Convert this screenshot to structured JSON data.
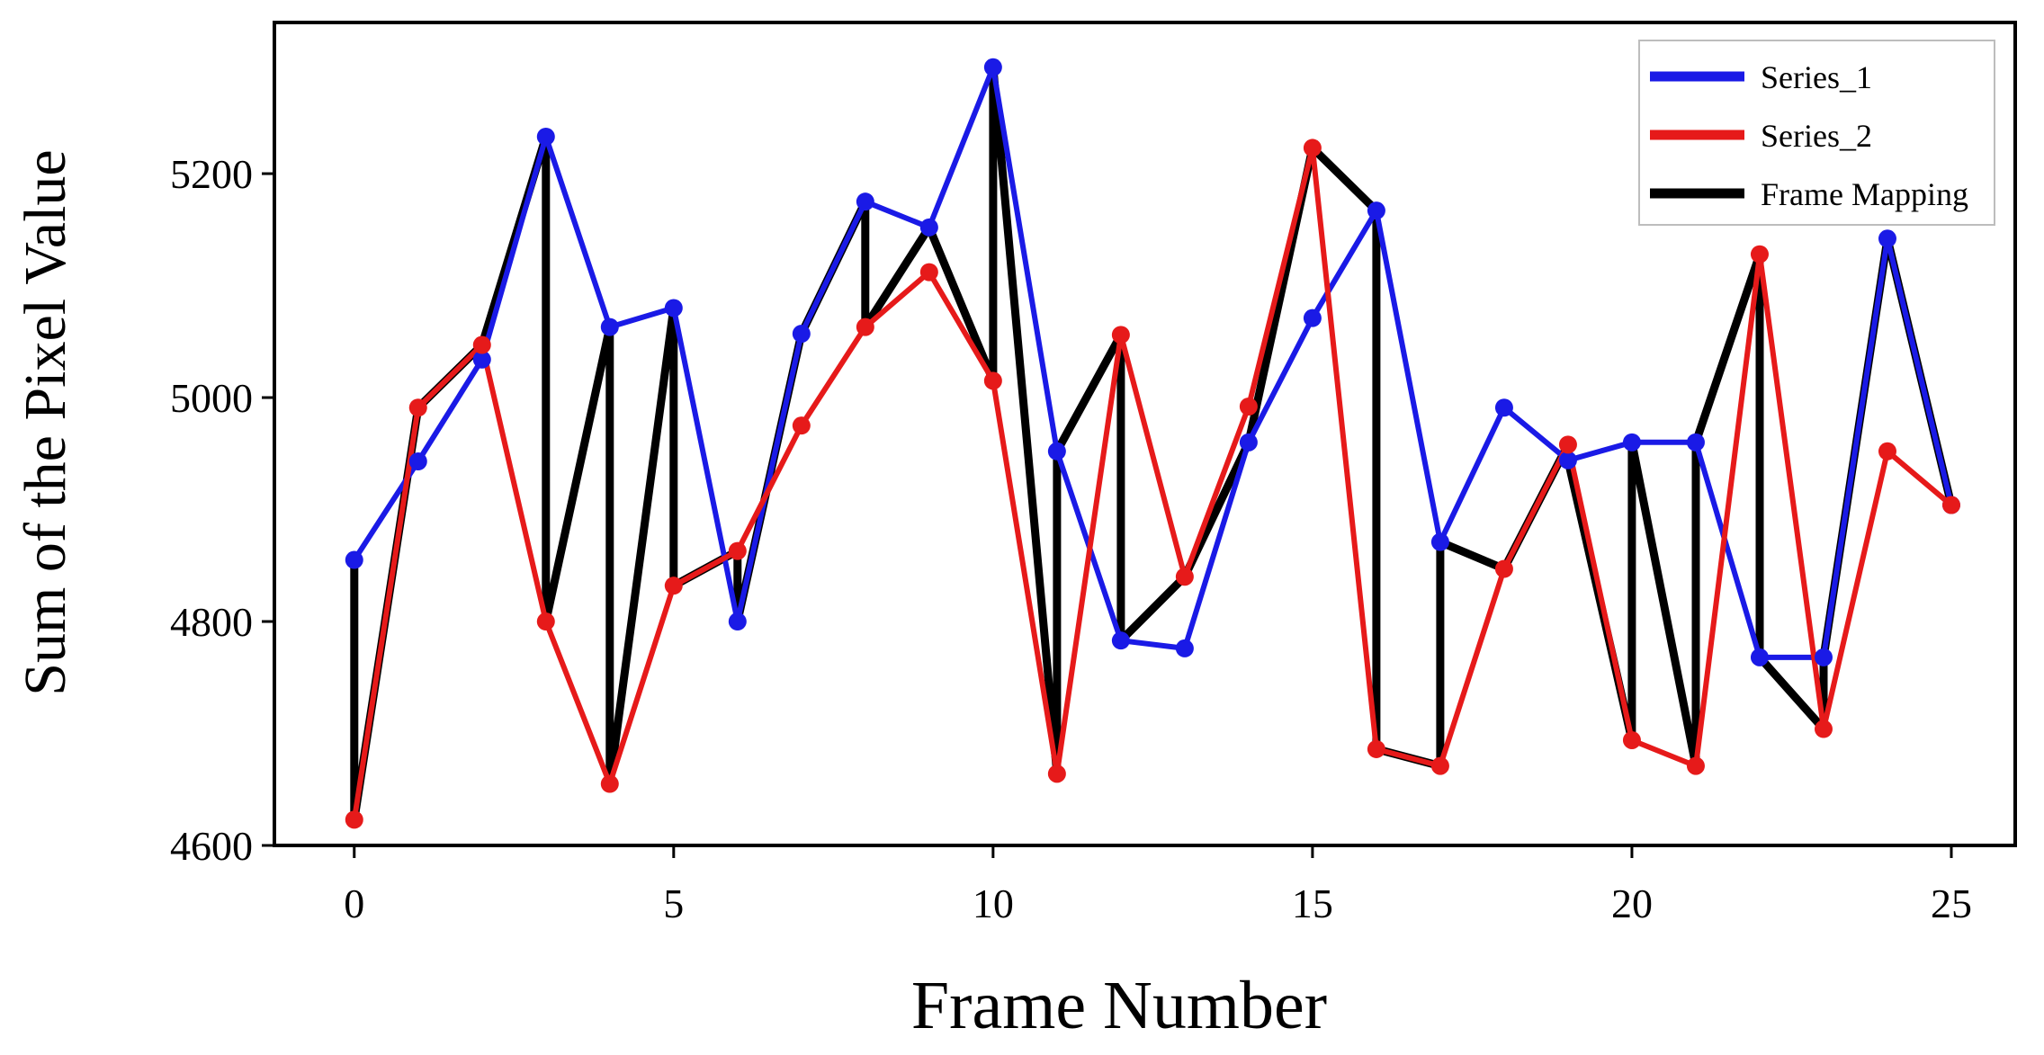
{
  "chart_data": {
    "type": "line",
    "title": "",
    "xlabel": "Frame Number",
    "ylabel": "Sum of the Pixel Value",
    "xlim": [
      -1.25,
      26
    ],
    "ylim": [
      4600,
      5335
    ],
    "xticks": [
      0,
      5,
      10,
      15,
      20,
      25
    ],
    "yticks": [
      4600,
      4800,
      5000,
      5200
    ],
    "grid": false,
    "legend_position": "top-right",
    "series": [
      {
        "name": "Series_1",
        "color": "#1a1ae6",
        "markers": true,
        "x": [
          0,
          1,
          2,
          3,
          4,
          5,
          6,
          7,
          8,
          9,
          10,
          11,
          12,
          13,
          14,
          15,
          16,
          17,
          18,
          19,
          20,
          21,
          22,
          23,
          24,
          25
        ],
        "y": [
          4855,
          4943,
          5034,
          5233,
          5063,
          5080,
          4800,
          5057,
          5175,
          5152,
          5295,
          4952,
          4783,
          4776,
          4960,
          5071,
          5167,
          4871,
          4991,
          4944,
          4960,
          4960,
          4768,
          4768,
          5142,
          4904
        ]
      },
      {
        "name": "Series_2",
        "color": "#e61a1a",
        "markers": true,
        "x": [
          0,
          1,
          2,
          3,
          4,
          5,
          6,
          7,
          8,
          9,
          10,
          11,
          12,
          13,
          14,
          15,
          16,
          17,
          18,
          19,
          20,
          21,
          22,
          23,
          24,
          25
        ],
        "y": [
          4623,
          4991,
          5047,
          4800,
          4655,
          4832,
          4863,
          4975,
          5063,
          5112,
          5015,
          4664,
          5056,
          4840,
          4992,
          5223,
          4686,
          4671,
          4847,
          4958,
          4694,
          4671,
          5128,
          4704,
          4952,
          4904
        ]
      },
      {
        "name": "Frame Mapping",
        "color": "#000000",
        "markers": false,
        "x": [
          0,
          0,
          1,
          2,
          3,
          3,
          4,
          4,
          5,
          5,
          6,
          6,
          7,
          8,
          8,
          9,
          10,
          10,
          11,
          11,
          12,
          12,
          13,
          14,
          15,
          16,
          16,
          17,
          17,
          18,
          19,
          19,
          20,
          20,
          21,
          21,
          22,
          22,
          23,
          23,
          24,
          25
        ],
        "y": [
          4855,
          4623,
          4991,
          5047,
          5233,
          4800,
          5063,
          4655,
          5080,
          4832,
          4863,
          4800,
          5057,
          5175,
          5063,
          5152,
          5015,
          5295,
          4664,
          4952,
          5056,
          4783,
          4840,
          4960,
          5223,
          5167,
          4686,
          4671,
          4871,
          4847,
          4958,
          4944,
          4694,
          4960,
          4671,
          4960,
          5128,
          4768,
          4704,
          4768,
          5142,
          4904
        ]
      }
    ]
  }
}
